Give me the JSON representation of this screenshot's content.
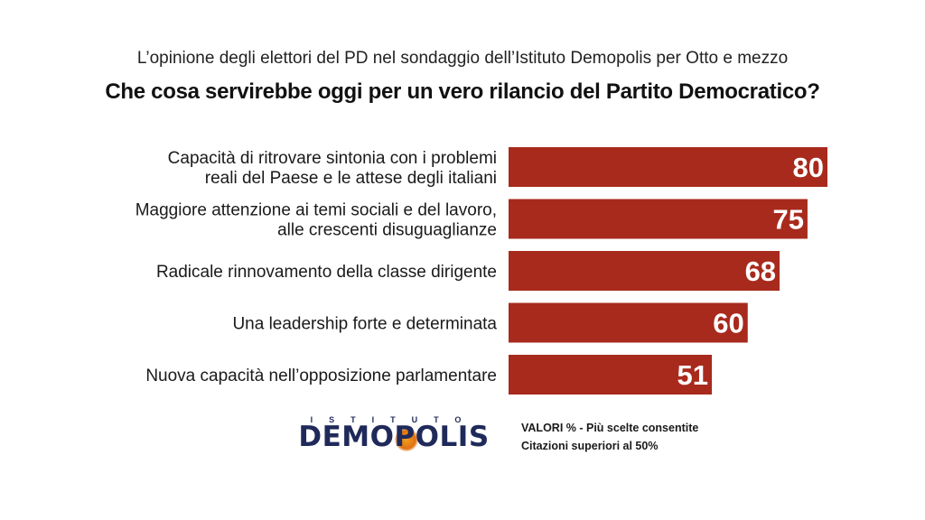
{
  "subtitle": "L’opinione degli elettori del PD nel sondaggio dell’Istituto Demopolis per Otto e mezzo",
  "title": "Che cosa servirebbe oggi per un vero rilancio del Partito Democratico?",
  "logo": {
    "top_text": "ISTITUTO",
    "main_text": "DEMOPOLIS"
  },
  "notes": {
    "line1": "VALORI % - Più scelte consentite",
    "line2": "Citazioni superiori al 50%"
  },
  "colors": {
    "bar": "#a82a1d",
    "logo": "#1f2a5a"
  },
  "chart_data": {
    "type": "bar",
    "orientation": "horizontal",
    "categories": [
      [
        "Capacità di ritrovare sintonia con i problemi",
        "reali del Paese e le attese degli italiani"
      ],
      [
        "Maggiore attenzione ai temi sociali e del lavoro,",
        "alle crescenti disuguaglianze"
      ],
      [
        "Radicale rinnovamento della classe dirigente"
      ],
      [
        "Una leadership forte e determinata"
      ],
      [
        "Nuova capacità nell’opposizione parlamentare"
      ]
    ],
    "values": [
      80,
      75,
      68,
      60,
      51
    ],
    "data_labels": [
      "80",
      "75",
      "68",
      "60",
      "51"
    ],
    "xlim": [
      0,
      80
    ],
    "grid": false,
    "legend": "none"
  }
}
